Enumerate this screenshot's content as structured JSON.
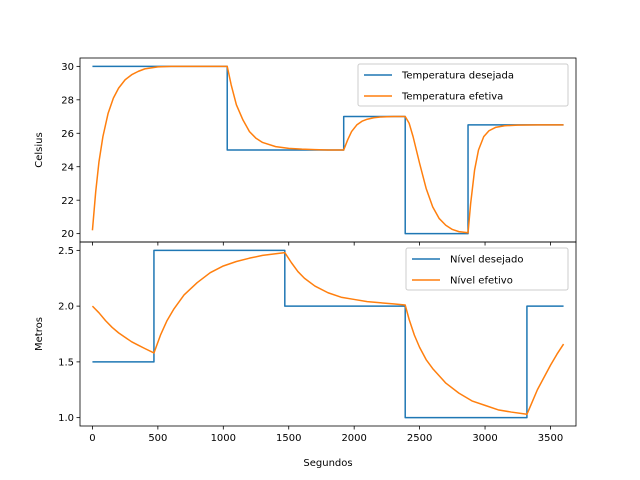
{
  "chart_data": [
    {
      "type": "line",
      "title": "",
      "xlabel": "",
      "ylabel": "Celsius",
      "xlim": [
        -95,
        3695
      ],
      "ylim": [
        19.5,
        30.5
      ],
      "xticks": [
        0,
        500,
        1000,
        1500,
        2000,
        2500,
        3000,
        3500
      ],
      "yticks": [
        20,
        22,
        24,
        26,
        28,
        30
      ],
      "ytick_labels": [
        "20",
        "22",
        "24",
        "26",
        "28",
        "30"
      ],
      "legend_position": "top-right",
      "series": [
        {
          "name": "Temperatura desejada",
          "color": "#1f77b4",
          "style": "step",
          "x": [
            0,
            1030,
            1030,
            1920,
            1920,
            2390,
            2390,
            2870,
            2870,
            3600
          ],
          "y": [
            30,
            30,
            25,
            25,
            27,
            27,
            20,
            20,
            26.5,
            26.5
          ]
        },
        {
          "name": "Temperatura efetiva",
          "color": "#ff7f0e",
          "style": "line",
          "x": [
            0,
            25,
            50,
            80,
            120,
            160,
            200,
            250,
            300,
            350,
            400,
            500,
            600,
            800,
            1030,
            1060,
            1100,
            1150,
            1200,
            1250,
            1300,
            1400,
            1500,
            1600,
            1700,
            1800,
            1920,
            1950,
            1980,
            2020,
            2060,
            2100,
            2150,
            2200,
            2250,
            2300,
            2390,
            2420,
            2450,
            2500,
            2550,
            2600,
            2650,
            2700,
            2750,
            2800,
            2870,
            2890,
            2920,
            2950,
            2990,
            3030,
            3080,
            3150,
            3250,
            3400,
            3600
          ],
          "y": [
            20.2,
            22.5,
            24.3,
            25.8,
            27.2,
            28.1,
            28.7,
            29.2,
            29.5,
            29.7,
            29.85,
            29.97,
            30.0,
            30.0,
            30.0,
            28.9,
            27.7,
            26.8,
            26.1,
            25.7,
            25.45,
            25.2,
            25.1,
            25.05,
            25.02,
            25.0,
            25.0,
            25.6,
            26.1,
            26.5,
            26.72,
            26.84,
            26.93,
            26.97,
            26.99,
            27.0,
            27.0,
            26.6,
            25.8,
            24.2,
            22.7,
            21.6,
            20.9,
            20.5,
            20.25,
            20.12,
            20.05,
            21.8,
            23.8,
            25.0,
            25.8,
            26.15,
            26.35,
            26.45,
            26.49,
            26.5,
            26.5
          ]
        }
      ]
    },
    {
      "type": "line",
      "title": "",
      "xlabel": "Segundos",
      "ylabel": "Metros",
      "xlim": [
        -95,
        3695
      ],
      "ylim": [
        0.925,
        2.575
      ],
      "xticks": [
        0,
        500,
        1000,
        1500,
        2000,
        2500,
        3000,
        3500
      ],
      "xtick_labels": [
        "0",
        "500",
        "1000",
        "1500",
        "2000",
        "2500",
        "3000",
        "3500"
      ],
      "yticks": [
        1.0,
        1.5,
        2.0,
        2.5
      ],
      "ytick_labels": [
        "1.0",
        "1.5",
        "2.0",
        "2.5"
      ],
      "legend_position": "top-right",
      "series": [
        {
          "name": "Nível desejado",
          "color": "#1f77b4",
          "style": "step",
          "x": [
            0,
            470,
            470,
            1470,
            1470,
            2390,
            2390,
            3320,
            3320,
            3600
          ],
          "y": [
            1.5,
            1.5,
            2.5,
            2.5,
            2.0,
            2.0,
            1.0,
            1.0,
            2.0,
            2.0
          ]
        },
        {
          "name": "Nível efetivo",
          "color": "#ff7f0e",
          "style": "line",
          "x": [
            0,
            50,
            100,
            150,
            200,
            250,
            300,
            350,
            400,
            470,
            520,
            570,
            620,
            700,
            800,
            900,
            1000,
            1100,
            1200,
            1300,
            1400,
            1470,
            1520,
            1570,
            1620,
            1700,
            1800,
            1900,
            2000,
            2100,
            2200,
            2300,
            2390,
            2420,
            2460,
            2500,
            2550,
            2600,
            2700,
            2800,
            2900,
            3000,
            3100,
            3200,
            3320,
            3360,
            3400,
            3450,
            3500,
            3550,
            3600
          ],
          "y": [
            2.0,
            1.94,
            1.87,
            1.81,
            1.76,
            1.72,
            1.68,
            1.65,
            1.62,
            1.58,
            1.74,
            1.87,
            1.97,
            2.1,
            2.21,
            2.3,
            2.36,
            2.4,
            2.43,
            2.455,
            2.47,
            2.48,
            2.39,
            2.31,
            2.25,
            2.18,
            2.12,
            2.08,
            2.06,
            2.04,
            2.03,
            2.02,
            2.01,
            1.88,
            1.74,
            1.63,
            1.52,
            1.44,
            1.31,
            1.22,
            1.15,
            1.11,
            1.07,
            1.05,
            1.03,
            1.14,
            1.25,
            1.36,
            1.47,
            1.57,
            1.66
          ]
        }
      ]
    }
  ]
}
